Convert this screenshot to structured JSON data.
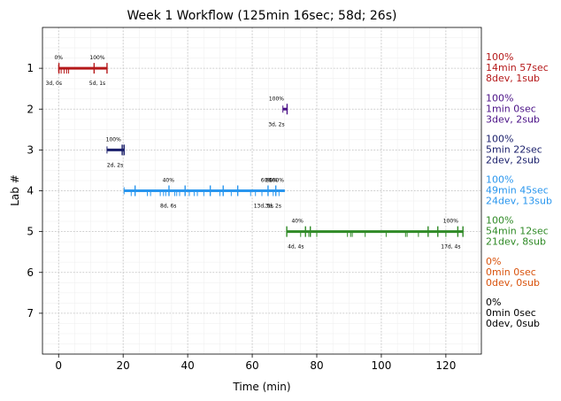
{
  "chart_data": {
    "type": "timeline",
    "title": "Week 1 Workflow (125min 16sec; 58d; 26s)",
    "xlabel": "Time (min)",
    "ylabel": "Lab #",
    "xlim": [
      -5,
      131
    ],
    "ylim": [
      8,
      0
    ],
    "x_ticks": [
      0,
      20,
      40,
      60,
      80,
      100,
      120
    ],
    "y_ticks": [
      1,
      2,
      3,
      4,
      5,
      6,
      7
    ],
    "grid": true,
    "labs": [
      {
        "lab": 1,
        "color": "#b5191a",
        "start": 0,
        "end": 15,
        "tall_ticks": [
          0.1,
          11,
          15
        ],
        "short_ticks": [
          0.8,
          1.7,
          2.5,
          3.1
        ],
        "top_labels": [
          {
            "x": 0,
            "text": "0%"
          },
          {
            "x": 12,
            "text": "100%"
          }
        ],
        "bottom_labels": [
          {
            "x": -1.5,
            "text": "3d, 0s"
          },
          {
            "x": 12,
            "text": "5d, 1s"
          }
        ],
        "summary": [
          "100%",
          "14min 57sec",
          "8dev, 1sub"
        ]
      },
      {
        "lab": 2,
        "color": "#4b1287",
        "start": 69.5,
        "end": 70.8,
        "tall_ticks": [
          70.8
        ],
        "short_ticks": [],
        "top_labels": [
          {
            "x": 67.5,
            "text": "100%"
          }
        ],
        "bottom_labels": [
          {
            "x": 67.5,
            "text": "3d, 2s"
          }
        ],
        "summary": [
          "100%",
          "1min 0sec",
          "3dev, 2sub"
        ]
      },
      {
        "lab": 3,
        "color": "#1a1f6b",
        "start": 15,
        "end": 20.3,
        "tall_ticks": [
          19.7,
          20.3
        ],
        "short_ticks": [],
        "top_labels": [
          {
            "x": 17,
            "text": "100%"
          }
        ],
        "bottom_labels": [
          {
            "x": 17.5,
            "text": "2d, 2s"
          }
        ],
        "summary": [
          "100%",
          "5min 22sec",
          "2dev, 2sub"
        ]
      },
      {
        "lab": 4,
        "color": "#2996ee",
        "start": 20.3,
        "end": 70.1,
        "tall_ticks": [
          23.7,
          34.2,
          39.2,
          47,
          51,
          55.5,
          64.9,
          67.3
        ],
        "short_ticks": [
          22.5,
          27.5,
          28.5,
          31.5,
          32.5,
          33.2,
          36,
          36.6,
          37.5,
          40.5,
          42,
          43,
          45,
          50,
          53.5,
          59.5,
          61,
          63,
          66.5,
          68.3
        ],
        "top_labels": [
          {
            "x": 34,
            "text": "40%"
          },
          {
            "x": 64.5,
            "text": "60%"
          },
          {
            "x": 66,
            "text": "80%"
          },
          {
            "x": 67.5,
            "text": "100%"
          }
        ],
        "bottom_labels": [
          {
            "x": 34,
            "text": "8d, 6s"
          },
          {
            "x": 63.5,
            "text": "13d, 5s"
          },
          {
            "x": 66.5,
            "text": "3d, 2s"
          }
        ],
        "summary": [
          "100%",
          "49min 45sec",
          "24dev, 13sub"
        ]
      },
      {
        "lab": 5,
        "color": "#2f8a26",
        "start": 70.7,
        "end": 125.3,
        "tall_ticks": [
          70.7,
          76.5,
          78,
          114.5,
          117.5,
          123.7,
          125.3
        ],
        "short_ticks": [
          75,
          77.5,
          80,
          89.5,
          90.5,
          91,
          95,
          101.5,
          107.5,
          108,
          111.5,
          120
        ],
        "top_labels": [
          {
            "x": 74,
            "text": "40%"
          },
          {
            "x": 121.5,
            "text": "100%"
          }
        ],
        "bottom_labels": [
          {
            "x": 73.5,
            "text": "4d, 4s"
          },
          {
            "x": 121.5,
            "text": "17d, 4s"
          }
        ],
        "summary": [
          "100%",
          "54min 12sec",
          "21dev, 8sub"
        ]
      },
      {
        "lab": 6,
        "color": "#d9530d",
        "start": null,
        "end": null,
        "tall_ticks": [],
        "short_ticks": [],
        "top_labels": [],
        "bottom_labels": [],
        "summary": [
          "0%",
          "0min 0sec",
          "0dev, 0sub"
        ]
      },
      {
        "lab": 7,
        "color": "#000000",
        "start": null,
        "end": null,
        "tall_ticks": [],
        "short_ticks": [],
        "top_labels": [],
        "bottom_labels": [],
        "summary": [
          "0%",
          "0min 0sec",
          "0dev, 0sub"
        ]
      }
    ]
  }
}
